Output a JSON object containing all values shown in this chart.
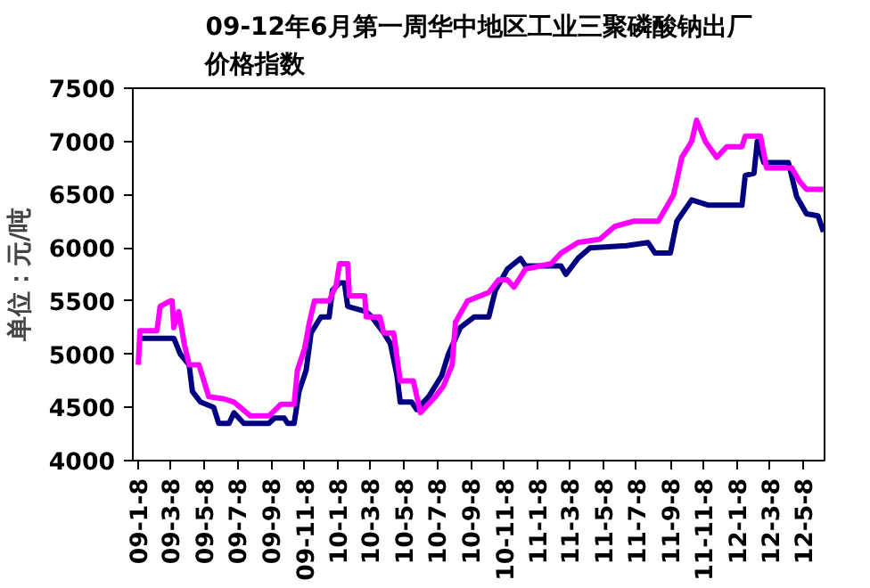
{
  "chart_data": {
    "type": "line",
    "title": "09-12年6月第一周华中地区工业三聚磷酸钠出厂价格指数",
    "ylabel": "单位：元/吨",
    "xlim": [
      "2008-12-29",
      "2012-06-16"
    ],
    "xticks": [
      {
        "value": "2009-01-08",
        "label": "09-1-8"
      },
      {
        "value": "2009-03-08",
        "label": "09-3-8"
      },
      {
        "value": "2009-05-08",
        "label": "09-5-8"
      },
      {
        "value": "2009-07-08",
        "label": "09-7-8"
      },
      {
        "value": "2009-09-08",
        "label": "09-9-8"
      },
      {
        "value": "2009-11-08",
        "label": "09-11-8"
      },
      {
        "value": "2010-01-08",
        "label": "10-1-8"
      },
      {
        "value": "2010-03-08",
        "label": "10-3-8"
      },
      {
        "value": "2010-05-08",
        "label": "10-5-8"
      },
      {
        "value": "2010-07-08",
        "label": "10-7-8"
      },
      {
        "value": "2010-09-08",
        "label": "10-9-8"
      },
      {
        "value": "2010-11-08",
        "label": "10-11-8"
      },
      {
        "value": "2011-01-08",
        "label": "11-1-8"
      },
      {
        "value": "2011-03-08",
        "label": "11-3-8"
      },
      {
        "value": "2011-05-08",
        "label": "11-5-8"
      },
      {
        "value": "2011-07-08",
        "label": "11-7-8"
      },
      {
        "value": "2011-09-08",
        "label": "11-9-8"
      },
      {
        "value": "2011-11-08",
        "label": "11-11-8"
      },
      {
        "value": "2012-01-08",
        "label": "12-1-8"
      },
      {
        "value": "2012-03-08",
        "label": "12-3-8"
      },
      {
        "value": "2012-05-08",
        "label": "12-5-8"
      }
    ],
    "ylim": [
      4000,
      7500
    ],
    "yticks": [
      4000,
      4500,
      5000,
      5500,
      6000,
      6500,
      7000,
      7500
    ],
    "grid": false,
    "line_style": "solid",
    "series": [
      {
        "color": "#000080",
        "x": [
          "2009-01-08",
          "2009-03-14",
          "2009-03-26",
          "2009-04-11",
          "2009-04-17",
          "2009-05-02",
          "2009-05-26",
          "2009-06-04",
          "2009-06-23",
          "2009-07-02",
          "2009-07-20",
          "2009-09-04",
          "2009-09-14",
          "2009-10-02",
          "2009-10-08",
          "2009-10-20",
          "2009-10-29",
          "2009-11-11",
          "2009-11-20",
          "2009-12-08",
          "2009-12-23",
          "2009-12-29",
          "2010-01-11",
          "2010-01-20",
          "2010-01-26",
          "2010-03-01",
          "2010-03-11",
          "2010-04-02",
          "2010-04-14",
          "2010-04-26",
          "2010-05-02",
          "2010-05-23",
          "2010-06-01",
          "2010-06-23",
          "2010-07-17",
          "2010-07-29",
          "2010-08-20",
          "2010-09-14",
          "2010-10-11",
          "2010-10-23",
          "2010-11-14",
          "2010-12-08",
          "2010-12-17",
          "2011-02-20",
          "2011-03-01",
          "2011-03-23",
          "2011-04-14",
          "2011-06-20",
          "2011-07-29",
          "2011-08-11",
          "2011-09-08",
          "2011-09-20",
          "2011-10-17",
          "2011-11-17",
          "2012-01-17",
          "2012-01-23",
          "2012-02-08",
          "2012-02-14",
          "2012-02-26",
          "2012-04-11",
          "2012-04-26",
          "2012-05-14",
          "2012-06-04",
          "2012-06-14"
        ],
        "values": [
          5150,
          5150,
          5000,
          4900,
          4650,
          4550,
          4500,
          4350,
          4350,
          4450,
          4350,
          4350,
          4400,
          4400,
          4350,
          4350,
          4650,
          4850,
          5200,
          5350,
          5350,
          5600,
          5670,
          5670,
          5450,
          5400,
          5350,
          5200,
          5100,
          4800,
          4550,
          4550,
          4480,
          4600,
          4800,
          5000,
          5250,
          5350,
          5350,
          5600,
          5800,
          5900,
          5830,
          5830,
          5750,
          5900,
          6000,
          6020,
          6050,
          5950,
          5950,
          6250,
          6450,
          6400,
          6400,
          6680,
          6700,
          7000,
          6800,
          6800,
          6480,
          6320,
          6300,
          6150
        ]
      },
      {
        "color": "#ff00ff",
        "x": [
          "2009-01-08",
          "2009-01-11",
          "2009-02-11",
          "2009-02-17",
          "2009-03-07",
          "2009-03-11",
          "2009-03-14",
          "2009-03-23",
          "2009-04-02",
          "2009-04-11",
          "2009-04-29",
          "2009-05-17",
          "2009-06-14",
          "2009-07-02",
          "2009-08-01",
          "2009-09-04",
          "2009-09-26",
          "2009-10-20",
          "2009-10-26",
          "2009-11-08",
          "2009-11-17",
          "2009-11-26",
          "2009-12-23",
          "2010-01-05",
          "2010-01-11",
          "2010-01-26",
          "2010-01-29",
          "2010-02-26",
          "2010-03-01",
          "2010-03-26",
          "2010-04-02",
          "2010-04-20",
          "2010-05-02",
          "2010-05-26",
          "2010-06-08",
          "2010-07-05",
          "2010-07-20",
          "2010-08-05",
          "2010-08-11",
          "2010-09-02",
          "2010-10-11",
          "2010-10-29",
          "2010-11-14",
          "2010-11-26",
          "2010-12-17",
          "2011-02-02",
          "2011-02-20",
          "2011-03-23",
          "2011-05-02",
          "2011-05-29",
          "2011-07-02",
          "2011-08-17",
          "2011-09-14",
          "2011-09-29",
          "2011-10-17",
          "2011-10-26",
          "2011-11-11",
          "2011-12-02",
          "2011-12-20",
          "2012-01-17",
          "2012-01-23",
          "2012-02-20",
          "2012-03-02",
          "2012-04-17",
          "2012-05-02",
          "2012-05-14",
          "2012-06-14"
        ],
        "values": [
          4900,
          5220,
          5220,
          5450,
          5500,
          5500,
          5250,
          5400,
          5100,
          4900,
          4900,
          4600,
          4580,
          4550,
          4420,
          4420,
          4530,
          4530,
          4850,
          5050,
          5300,
          5500,
          5500,
          5650,
          5850,
          5850,
          5550,
          5550,
          5350,
          5350,
          5200,
          5200,
          4750,
          4750,
          4450,
          4600,
          4700,
          4900,
          5300,
          5500,
          5580,
          5700,
          5700,
          5630,
          5800,
          5850,
          5950,
          6050,
          6080,
          6200,
          6250,
          6250,
          6500,
          6850,
          7000,
          7200,
          7000,
          6850,
          6950,
          6950,
          7050,
          7050,
          6750,
          6750,
          6620,
          6550,
          6550
        ]
      }
    ]
  }
}
